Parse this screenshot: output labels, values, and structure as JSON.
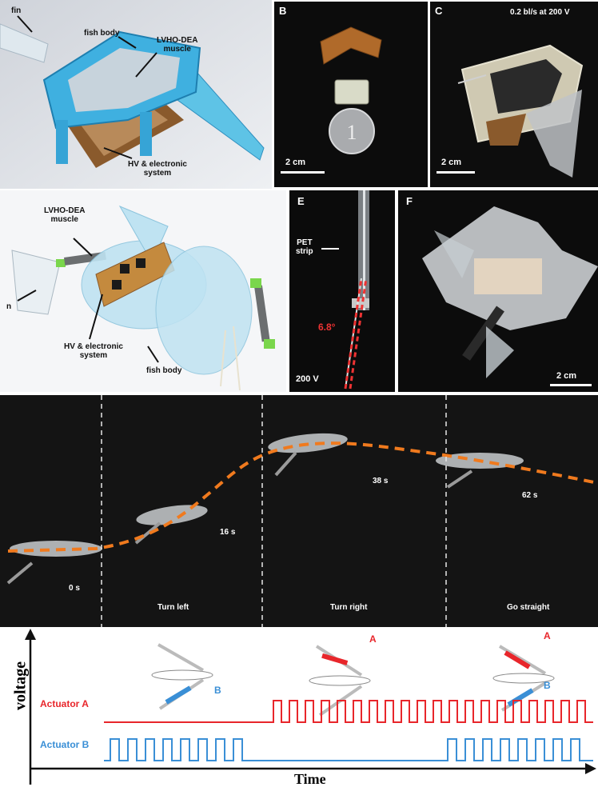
{
  "panels": {
    "a": {
      "labels": {
        "fin": "fin",
        "fish_body": "fish body",
        "muscle": "LVHO-DEA\nmuscle",
        "system": "HV & electronic\nsystem"
      }
    },
    "b": {
      "letter": "B",
      "scale": "2 cm"
    },
    "c": {
      "letter": "C",
      "speed": "0.2 bl/s at 200 V",
      "scale": "2 cm"
    },
    "d": {
      "labels": {
        "muscle": "LVHO-DEA\nmuscle",
        "fin": "n",
        "system": "HV & electronic\nsystem",
        "fish_body": "fish body"
      }
    },
    "e": {
      "letter": "E",
      "pet": "PET\nstrip",
      "angle": "6.8°",
      "voltage": "200 V"
    },
    "f": {
      "letter": "F",
      "scale": "2 cm"
    },
    "g": {
      "times": [
        "0 s",
        "16 s",
        "38 s",
        "62 s"
      ],
      "phases": [
        "Turn left",
        "Turn right",
        "Go straight"
      ]
    },
    "h": {
      "y_axis": "voltage",
      "x_axis": "Time",
      "actuator_a": "Actuator A",
      "actuator_b": "Actuator B",
      "icon_a": "A",
      "icon_b": "B",
      "colors": {
        "a": "#e8262b",
        "b": "#3a8fd6"
      }
    }
  }
}
